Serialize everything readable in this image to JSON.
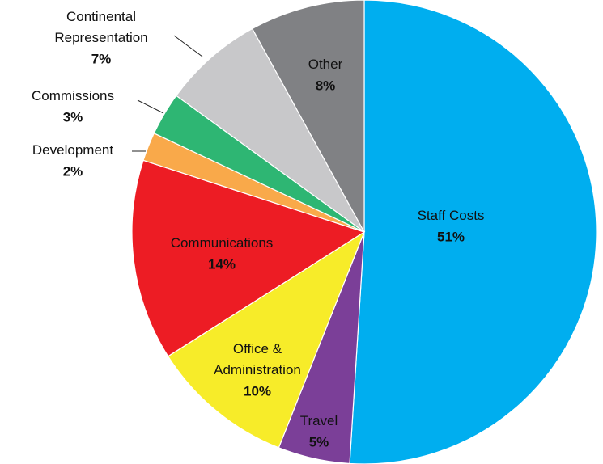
{
  "chart_data": {
    "type": "pie",
    "categories": [
      "Staff Costs",
      "Travel",
      "Office &\nAdministration",
      "Communications",
      "Development",
      "Commissions",
      "Continental\nRepresentation",
      "Other"
    ],
    "values": [
      51,
      5,
      10,
      14,
      2,
      3,
      7,
      8
    ],
    "value_labels": [
      "51%",
      "5%",
      "10%",
      "14%",
      "2%",
      "3%",
      "7%",
      "8%"
    ],
    "colors": [
      "#00aeef",
      "#7b3f98",
      "#f7ec29",
      "#ed1c24",
      "#f9a94a",
      "#2eb673",
      "#c8c8ca",
      "#808184"
    ]
  }
}
